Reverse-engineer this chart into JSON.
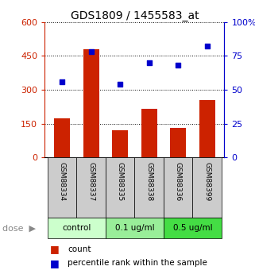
{
  "title": "GDS1809 / 1455583_at",
  "categories": [
    "GSM88334",
    "GSM88337",
    "GSM88335",
    "GSM88338",
    "GSM88336",
    "GSM88399"
  ],
  "bar_values": [
    175,
    480,
    120,
    215,
    130,
    255
  ],
  "scatter_values": [
    56,
    78,
    54,
    70,
    68,
    82
  ],
  "bar_color": "#cc2200",
  "scatter_color": "#0000cc",
  "left_ylim": [
    0,
    600
  ],
  "left_yticks": [
    0,
    150,
    300,
    450,
    600
  ],
  "right_ylim": [
    0,
    100
  ],
  "right_yticks": [
    0,
    25,
    50,
    75,
    100
  ],
  "right_yticklabels": [
    "0",
    "25",
    "50",
    "75",
    "100%"
  ],
  "groups": [
    {
      "label": "control",
      "indices": [
        0,
        1
      ],
      "color": "#ccffcc"
    },
    {
      "label": "0.1 ug/ml",
      "indices": [
        2,
        3
      ],
      "color": "#99ee99"
    },
    {
      "label": "0.5 ug/ml",
      "indices": [
        4,
        5
      ],
      "color": "#44dd44"
    }
  ],
  "dose_label": "dose",
  "legend_bar_label": "count",
  "legend_scatter_label": "percentile rank within the sample",
  "left_axis_color": "#cc2200",
  "right_axis_color": "#0000cc",
  "bar_width": 0.55,
  "tick_area_color": "#cccccc",
  "bg_color": "#ffffff"
}
